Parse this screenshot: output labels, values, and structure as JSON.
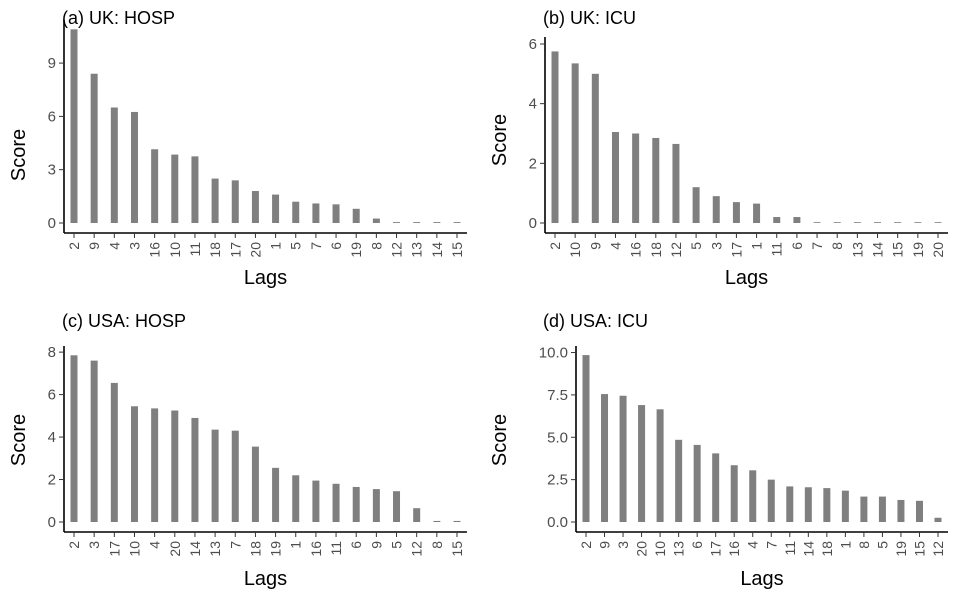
{
  "chart_data": [
    {
      "type": "bar",
      "title": "(a) UK: HOSP",
      "xlabel": "Lags",
      "ylabel": "Score",
      "ylim": [
        0,
        11.2
      ],
      "yticks": [
        0,
        3,
        6,
        9
      ],
      "ytick_labels": [
        "0",
        "3",
        "6",
        "9"
      ],
      "categories": [
        "2",
        "9",
        "4",
        "3",
        "16",
        "10",
        "11",
        "18",
        "17",
        "20",
        "1",
        "5",
        "7",
        "6",
        "19",
        "8",
        "12",
        "13",
        "14",
        "15"
      ],
      "values": [
        10.9,
        8.4,
        6.5,
        6.25,
        4.15,
        3.85,
        3.75,
        2.5,
        2.4,
        1.8,
        1.6,
        1.2,
        1.1,
        1.05,
        0.8,
        0.25,
        0.05,
        0.05,
        0.05,
        0.05
      ],
      "bar_color": "#7f7f7f"
    },
    {
      "type": "bar",
      "title": "(b) UK: ICU",
      "xlabel": "Lags",
      "ylabel": "Score",
      "ylim": [
        0,
        6.1
      ],
      "yticks": [
        0,
        2,
        4,
        6
      ],
      "ytick_labels": [
        "0",
        "2",
        "4",
        "6"
      ],
      "categories": [
        "2",
        "10",
        "9",
        "4",
        "16",
        "18",
        "12",
        "5",
        "3",
        "17",
        "1",
        "11",
        "6",
        "7",
        "8",
        "13",
        "14",
        "15",
        "19",
        "20"
      ],
      "values": [
        5.75,
        5.35,
        5.0,
        3.05,
        3.0,
        2.85,
        2.65,
        1.2,
        0.9,
        0.7,
        0.65,
        0.2,
        0.2,
        0.02,
        0.02,
        0.02,
        0.02,
        0.02,
        0.02,
        0.02
      ],
      "bar_color": "#7f7f7f"
    },
    {
      "type": "bar",
      "title": "(c) USA: HOSP",
      "xlabel": "Lags",
      "ylabel": "Score",
      "ylim": [
        0,
        8.1
      ],
      "yticks": [
        0,
        2,
        4,
        6,
        8
      ],
      "ytick_labels": [
        "0",
        "2",
        "4",
        "6",
        "8"
      ],
      "categories": [
        "2",
        "3",
        "17",
        "10",
        "4",
        "20",
        "14",
        "13",
        "7",
        "18",
        "19",
        "1",
        "16",
        "11",
        "6",
        "9",
        "5",
        "12",
        "8",
        "15"
      ],
      "values": [
        7.85,
        7.6,
        6.55,
        5.45,
        5.35,
        5.25,
        4.9,
        4.35,
        4.3,
        3.55,
        2.55,
        2.2,
        1.95,
        1.8,
        1.65,
        1.55,
        1.45,
        0.65,
        0.05,
        0.05
      ],
      "bar_color": "#7f7f7f"
    },
    {
      "type": "bar",
      "title": "(d) USA: ICU",
      "xlabel": "Lags",
      "ylabel": "Score",
      "ylim": [
        0,
        10.15
      ],
      "yticks": [
        0,
        2.5,
        5,
        7.5,
        10
      ],
      "ytick_labels": [
        "0.0",
        "2.5",
        "5.0",
        "7.5",
        "10.0"
      ],
      "categories": [
        "2",
        "9",
        "3",
        "20",
        "10",
        "13",
        "6",
        "17",
        "16",
        "4",
        "7",
        "11",
        "14",
        "18",
        "1",
        "8",
        "5",
        "19",
        "15",
        "12"
      ],
      "values": [
        9.85,
        7.55,
        7.45,
        6.9,
        6.65,
        4.85,
        4.55,
        4.05,
        3.35,
        3.05,
        2.5,
        2.1,
        2.05,
        2.0,
        1.85,
        1.5,
        1.5,
        1.3,
        1.25,
        0.25
      ],
      "bar_color": "#7f7f7f"
    }
  ]
}
